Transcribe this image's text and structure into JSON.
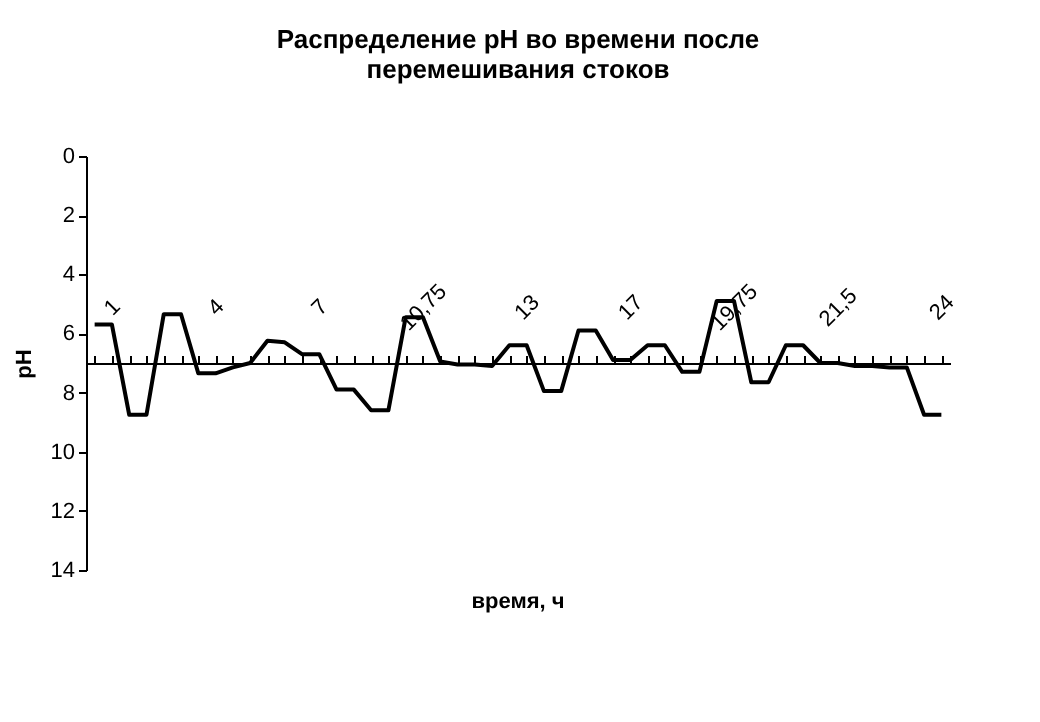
{
  "chart_data": {
    "type": "line",
    "title": [
      "Распределение pH во времени после",
      "перемешивания стоков"
    ],
    "xlabel": "время, ч",
    "ylabel": "pH",
    "categories": [
      null,
      "1",
      null,
      null,
      null,
      null,
      null,
      "4",
      null,
      null,
      null,
      null,
      null,
      "7",
      null,
      null,
      null,
      null,
      null,
      "10,75",
      null,
      null,
      null,
      null,
      null,
      "13",
      null,
      null,
      null,
      null,
      null,
      "17",
      null,
      null,
      null,
      null,
      null,
      "19,75",
      null,
      null,
      null,
      null,
      null,
      "21,5",
      null,
      null,
      null,
      null,
      null,
      "24"
    ],
    "series": [
      {
        "color": "#000000",
        "values": [
          5.7,
          5.7,
          8.75,
          8.75,
          5.35,
          5.35,
          7.35,
          7.35,
          7.15,
          7.0,
          6.25,
          6.3,
          6.7,
          6.7,
          7.9,
          7.9,
          8.6,
          8.6,
          5.45,
          5.45,
          6.95,
          7.05,
          7.05,
          7.1,
          6.4,
          6.4,
          7.95,
          7.95,
          5.9,
          5.9,
          6.9,
          6.9,
          6.4,
          6.4,
          7.3,
          7.3,
          4.9,
          4.9,
          7.65,
          7.65,
          6.4,
          6.4,
          7.0,
          7.0,
          7.1,
          7.1,
          7.15,
          7.15,
          8.75,
          8.75
        ]
      }
    ],
    "ylim": [
      14,
      0
    ],
    "yticks": [
      0,
      2,
      4,
      6,
      8,
      10,
      12,
      14
    ],
    "grid": false,
    "marker": "none",
    "line_style": "solid"
  }
}
